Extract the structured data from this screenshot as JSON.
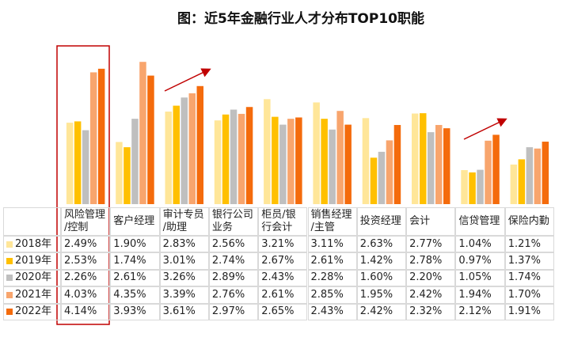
{
  "chart_data": {
    "type": "bar",
    "title": "图：近5年金融行业人才分布TOP10职能",
    "categories": [
      "风险管理\n/控制",
      "客户经理",
      "审计专员\n/助理",
      "银行公司\n业务",
      "柜员/银\n行会计",
      "销售经理\n/主管",
      "投资经理",
      "会计",
      "信贷管理",
      "保险内勤"
    ],
    "ylim": [
      0,
      4.5
    ],
    "series": [
      {
        "name": "2018年",
        "color": "#ffe699",
        "values": [
          2.49,
          1.9,
          2.83,
          2.56,
          3.21,
          3.11,
          2.63,
          2.77,
          1.04,
          1.21
        ],
        "value_labels": [
          "2.49%",
          "1.90%",
          "2.83%",
          "2.56%",
          "3.21%",
          "3.11%",
          "2.63%",
          "2.77%",
          "1.04%",
          "1.21%"
        ]
      },
      {
        "name": "2019年",
        "color": "#ffc000",
        "values": [
          2.53,
          1.74,
          3.01,
          2.74,
          2.67,
          2.61,
          1.42,
          2.78,
          0.97,
          1.37
        ],
        "value_labels": [
          "2.53%",
          "1.74%",
          "3.01%",
          "2.74%",
          "2.67%",
          "2.61%",
          "1.42%",
          "2.78%",
          "0.97%",
          "1.37%"
        ]
      },
      {
        "name": "2020年",
        "color": "#bfbfbf",
        "values": [
          2.26,
          2.61,
          3.26,
          2.89,
          2.43,
          2.28,
          1.6,
          2.2,
          1.05,
          1.74
        ],
        "value_labels": [
          "2.26%",
          "2.61%",
          "3.26%",
          "2.89%",
          "2.43%",
          "2.28%",
          "1.60%",
          "2.20%",
          "1.05%",
          "1.74%"
        ]
      },
      {
        "name": "2021年",
        "color": "#f8a56d",
        "values": [
          4.03,
          4.35,
          3.39,
          2.76,
          2.61,
          2.85,
          1.95,
          2.42,
          1.94,
          1.7
        ],
        "value_labels": [
          "4.03%",
          "4.35%",
          "3.39%",
          "2.76%",
          "2.61%",
          "2.85%",
          "1.95%",
          "2.42%",
          "1.94%",
          "1.70%"
        ]
      },
      {
        "name": "2022年",
        "color": "#f46b0c",
        "values": [
          4.14,
          3.93,
          3.61,
          2.97,
          2.65,
          2.43,
          2.42,
          2.32,
          2.12,
          1.91
        ],
        "value_labels": [
          "4.14%",
          "3.93%",
          "3.61%",
          "2.97%",
          "2.65%",
          "2.43%",
          "2.42%",
          "2.32%",
          "2.12%",
          "1.91%"
        ]
      }
    ]
  }
}
